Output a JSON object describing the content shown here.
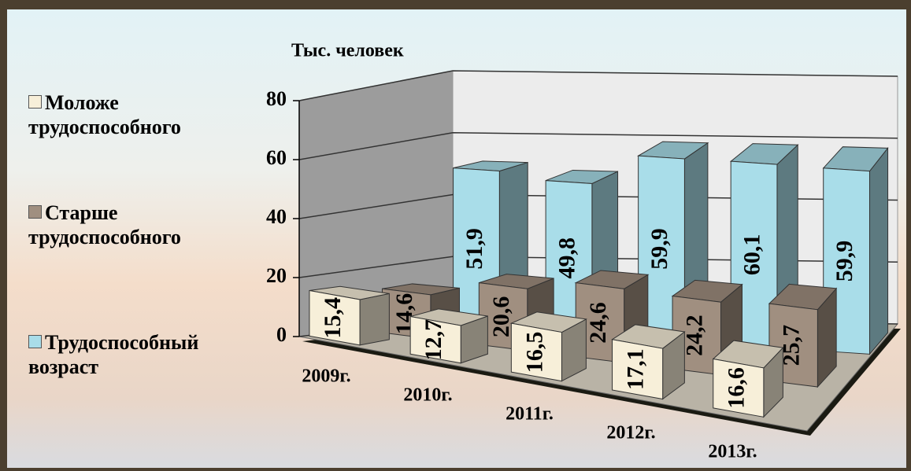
{
  "chart_data": {
    "type": "bar3d",
    "y_axis_label": "Тыс. человек",
    "categories": [
      "2009г.",
      "2010г.",
      "2011г.",
      "2012г.",
      "2013г."
    ],
    "series": [
      {
        "name": "Моложе трудоспособного",
        "color": "#f7efd9",
        "values": [
          15.4,
          12.7,
          16.5,
          17.1,
          16.6
        ],
        "value_labels": [
          "15,4",
          "12,7",
          "16,5",
          "17,1",
          "16,6"
        ]
      },
      {
        "name": "Старше трудоспособного",
        "color": "#a08f80",
        "values": [
          14.6,
          20.6,
          24.6,
          24.2,
          25.7
        ],
        "value_labels": [
          "14,6",
          "20,6",
          "24,6",
          "24,2",
          "25,7"
        ]
      },
      {
        "name": "Трудоспособный возраст",
        "color": "#a9dde9",
        "values": [
          51.9,
          49.8,
          59.9,
          60.1,
          59.9
        ],
        "value_labels": [
          "51,9",
          "49,8",
          "59,9",
          "60,1",
          "59,9"
        ]
      }
    ],
    "ylim": [
      0,
      80
    ],
    "yticks": [
      0,
      20,
      40,
      60,
      80
    ],
    "grid": true,
    "legend": "left"
  }
}
